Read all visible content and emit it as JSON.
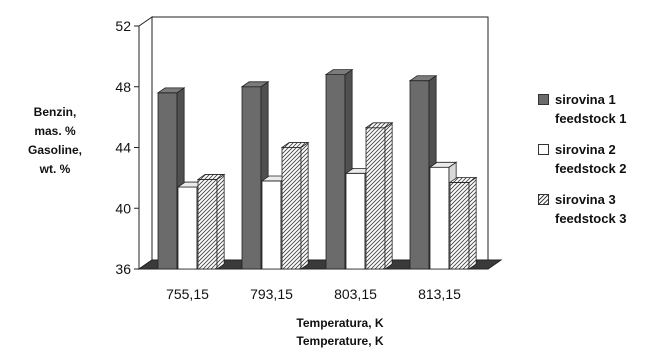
{
  "chart_data": {
    "type": "bar",
    "categories": [
      "755,15",
      "793,15",
      "803,15",
      "813,15"
    ],
    "series": [
      {
        "name": "sirovina 1",
        "name_en": "feedstock 1",
        "values": [
          47.6,
          48.0,
          48.8,
          48.4
        ],
        "color": "#6b6b6b",
        "pattern": "solid"
      },
      {
        "name": "sirovina 2",
        "name_en": "feedstock 2",
        "values": [
          41.4,
          41.8,
          42.3,
          42.7
        ],
        "color": "#ffffff",
        "pattern": "plain"
      },
      {
        "name": "sirovina 3",
        "name_en": "feedstock 3",
        "values": [
          41.9,
          44.0,
          45.3,
          41.7
        ],
        "color": "#d9d9d9",
        "pattern": "hatched"
      }
    ],
    "title": "",
    "ylabel": [
      "Benzin,",
      "mas. %",
      "Gasoline,",
      "wt. %"
    ],
    "xlabel": [
      "Temperatura, K",
      "Temperature, K"
    ],
    "ylim": [
      36,
      52
    ],
    "yticks": [
      "36",
      "40",
      "44",
      "48",
      "52"
    ],
    "legend_position": "right",
    "grid": false
  }
}
